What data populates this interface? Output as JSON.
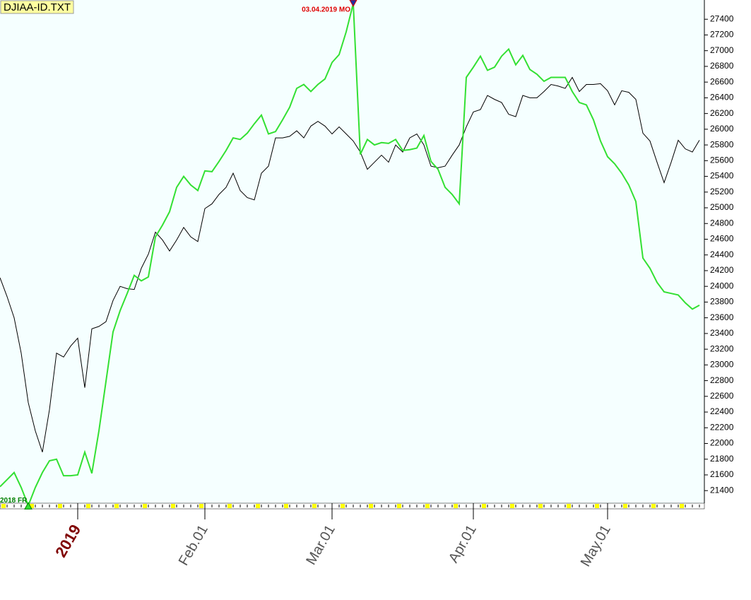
{
  "chart_data": {
    "type": "line",
    "title": "DJIAA-ID.TXT",
    "annotations": [
      {
        "text": "03.04.2019 MO",
        "index": 50,
        "series": 1,
        "color": "#e00000"
      },
      {
        "text": "2018 FR",
        "index": 4,
        "series": 1,
        "color": "#008000"
      }
    ],
    "categories": [
      null,
      null,
      null,
      null,
      null,
      null,
      null,
      null,
      null,
      null,
      null,
      "2019",
      null,
      null,
      null,
      null,
      null,
      null,
      null,
      null,
      null,
      null,
      null,
      null,
      null,
      null,
      null,
      null,
      null,
      "Feb.01",
      null,
      null,
      null,
      null,
      null,
      null,
      null,
      null,
      null,
      null,
      null,
      null,
      null,
      null,
      null,
      null,
      null,
      "Mar.01",
      null,
      null,
      null,
      null,
      null,
      null,
      null,
      null,
      null,
      null,
      null,
      null,
      null,
      null,
      null,
      null,
      null,
      null,
      null,
      "Apr.01",
      null,
      null,
      null,
      null,
      null,
      null,
      null,
      null,
      null,
      null,
      null,
      null,
      null,
      null,
      null,
      null,
      null,
      null,
      "May.01",
      null,
      null,
      null,
      null,
      null,
      null,
      null,
      null,
      null,
      null,
      null,
      null,
      null
    ],
    "series": [
      {
        "color": "#000000",
        "values": [
          24110,
          23870,
          23600,
          23150,
          22520,
          22160,
          21890,
          22430,
          23150,
          23100,
          23240,
          23340,
          22710,
          23460,
          23490,
          23550,
          23820,
          24000,
          23970,
          23960,
          24230,
          24410,
          24690,
          24590,
          24450,
          24590,
          24750,
          24630,
          24570,
          24990,
          25050,
          25170,
          25260,
          25440,
          25220,
          25130,
          25100,
          25440,
          25530,
          25890,
          25890,
          25910,
          25980,
          25890,
          26040,
          26100,
          26040,
          25940,
          26030,
          25940,
          25850,
          25710,
          25490,
          25580,
          25670,
          25580,
          25800,
          25710,
          25890,
          25940,
          25800,
          25530,
          25510,
          25530,
          25670,
          25800,
          26030,
          26220,
          26250,
          26430,
          26380,
          26340,
          26190,
          26160,
          26430,
          26400,
          26400,
          26480,
          26570,
          26550,
          26520,
          26660,
          26480,
          26570,
          26570,
          26580,
          26490,
          26310,
          26490,
          26470,
          26380,
          25950,
          25850,
          25580,
          25320,
          25580,
          25860,
          25750,
          25710,
          25860
        ]
      },
      {
        "color": "#33e033",
        "values": [
          21450,
          21540,
          21630,
          21440,
          21210,
          21440,
          21630,
          21780,
          21800,
          21590,
          21590,
          21600,
          21890,
          21620,
          22160,
          22790,
          23420,
          23690,
          23910,
          24140,
          24070,
          24120,
          24630,
          24780,
          24950,
          25260,
          25400,
          25290,
          25220,
          25470,
          25460,
          25590,
          25730,
          25890,
          25870,
          25950,
          26070,
          26180,
          25940,
          25970,
          26120,
          26280,
          26520,
          26570,
          26480,
          26570,
          26640,
          26850,
          26950,
          27240,
          27600,
          25680,
          25870,
          25800,
          25830,
          25820,
          25870,
          25730,
          25740,
          25760,
          25920,
          25590,
          25490,
          25260,
          25170,
          25050,
          26660,
          26790,
          26930,
          26750,
          26790,
          26930,
          27020,
          26820,
          26940,
          26760,
          26700,
          26610,
          26660,
          26660,
          26660,
          26480,
          26340,
          26310,
          26120,
          25850,
          25650,
          25560,
          25440,
          25290,
          25080,
          24360,
          24230,
          24050,
          23930,
          23910,
          23890,
          23790,
          23710,
          23760
        ]
      }
    ],
    "ylim": [
      21240,
      27600
    ],
    "yticks": [
      21400,
      21600,
      21800,
      22000,
      22200,
      22400,
      22600,
      22800,
      23000,
      23200,
      23400,
      23600,
      23800,
      24000,
      24200,
      24400,
      24600,
      24800,
      25000,
      25200,
      25400,
      25600,
      25800,
      26000,
      26200,
      26400,
      26600,
      26800,
      27000,
      27200,
      27400
    ],
    "background": "#f5ffff"
  }
}
